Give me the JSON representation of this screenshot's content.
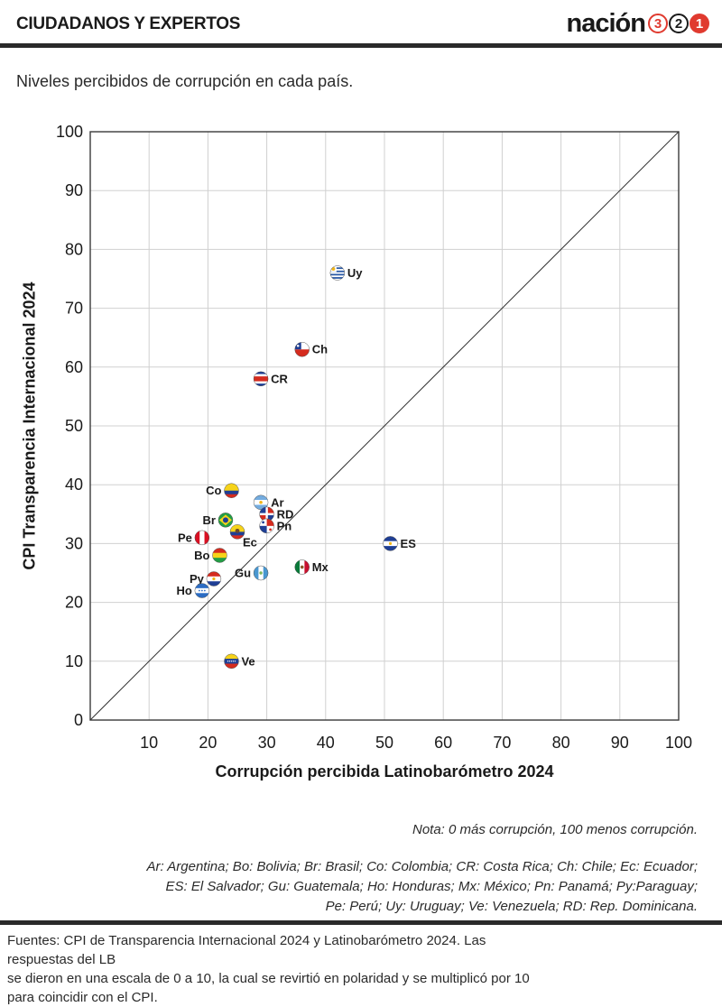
{
  "header": {
    "section_label": "CIUDADANOS Y EXPERTOS",
    "brand_name": "nación",
    "brand_digits": [
      "3",
      "2",
      "1"
    ]
  },
  "subtitle": "Niveles percibidos de corrupción en cada país.",
  "chart_data": {
    "type": "scatter",
    "xlabel": "Corrupción percibida Latinobarómetro 2024",
    "ylabel": "CPI Transparencia Internacional 2024",
    "xlim": [
      0,
      100
    ],
    "ylim": [
      0,
      100
    ],
    "x_ticks": [
      "10",
      "20",
      "30",
      "40",
      "50",
      "60",
      "70",
      "80",
      "90",
      "100"
    ],
    "y_ticks": [
      "0",
      "10",
      "20",
      "30",
      "40",
      "50",
      "60",
      "70",
      "80",
      "90",
      "100"
    ],
    "grid": true,
    "reference_line": "y = x",
    "points": [
      {
        "label": "Uy",
        "x": 42,
        "y": 76,
        "label_side": "right",
        "flag": "uruguay-flag-icon"
      },
      {
        "label": "Ch",
        "x": 36,
        "y": 63,
        "label_side": "right",
        "flag": "chile-flag-icon"
      },
      {
        "label": "CR",
        "x": 29,
        "y": 58,
        "label_side": "right",
        "flag": "costa-rica-flag-icon"
      },
      {
        "label": "Co",
        "x": 24,
        "y": 39,
        "label_side": "left",
        "flag": "colombia-flag-icon"
      },
      {
        "label": "Ar",
        "x": 29,
        "y": 37,
        "label_side": "right",
        "flag": "argentina-flag-icon"
      },
      {
        "label": "RD",
        "x": 30,
        "y": 35,
        "label_side": "right",
        "flag": "dominican-republic-flag-icon"
      },
      {
        "label": "Br",
        "x": 23,
        "y": 34,
        "label_side": "left",
        "flag": "brazil-flag-icon"
      },
      {
        "label": "Pn",
        "x": 30,
        "y": 33,
        "label_side": "right",
        "flag": "panama-flag-icon"
      },
      {
        "label": "Ec",
        "x": 25,
        "y": 32,
        "label_side": "below-right",
        "flag": "ecuador-flag-icon"
      },
      {
        "label": "Pe",
        "x": 19,
        "y": 31,
        "label_side": "left",
        "flag": "peru-flag-icon"
      },
      {
        "label": "ES",
        "x": 51,
        "y": 30,
        "label_side": "right",
        "flag": "el-salvador-flag-icon"
      },
      {
        "label": "Bo",
        "x": 22,
        "y": 28,
        "label_side": "left",
        "flag": "bolivia-flag-icon"
      },
      {
        "label": "Mx",
        "x": 36,
        "y": 26,
        "label_side": "right",
        "flag": "mexico-flag-icon"
      },
      {
        "label": "Gu",
        "x": 29,
        "y": 25,
        "label_side": "left",
        "flag": "guatemala-flag-icon"
      },
      {
        "label": "Py",
        "x": 21,
        "y": 24,
        "label_side": "left",
        "flag": "paraguay-flag-icon"
      },
      {
        "label": "Ho",
        "x": 19,
        "y": 22,
        "label_side": "left",
        "flag": "honduras-flag-icon"
      },
      {
        "label": "Ve",
        "x": 24,
        "y": 10,
        "label_side": "right",
        "flag": "venezuela-flag-icon"
      }
    ]
  },
  "note": "Nota: 0 más corrupción, 100 menos corrupción.",
  "abbreviations": [
    "Ar: Argentina; Bo: Bolivia; Br: Brasil; Co: Colombia; CR: Costa Rica; Ch: Chile; Ec: Ecuador;",
    "ES: El Salvador; Gu: Guatemala; Ho: Honduras; Mx: México; Pn: Panamá; Py:Paraguay;",
    "Pe: Perú; Uy: Uruguay; Ve: Venezuela; RD: Rep. Dominicana."
  ],
  "sources": [
    "Fuentes: CPI de Transparencia Internacional 2024 y Latinobarómetro 2024. Las respuestas del LB",
    "se dieron en una escala de 0 a 10, la cual se revirtió en polaridad y se multiplicó por 10",
    "para coincidir con el CPI."
  ],
  "colors": {
    "accent": "#e03a2f",
    "rule": "#2a2a2a",
    "grid": "#d0d0d0",
    "axis": "#3a3a3a"
  }
}
